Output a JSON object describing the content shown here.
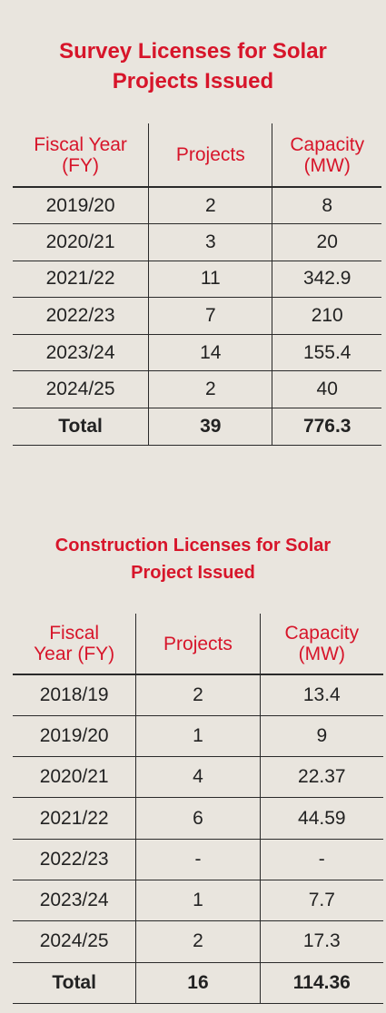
{
  "survey": {
    "title": "Survey Licenses for Solar Projects Issued",
    "headers": [
      "Fiscal Year (FY)",
      "Projects",
      "Capacity (MW)"
    ],
    "rows": [
      [
        "2019/20",
        "2",
        "8"
      ],
      [
        "2020/21",
        "3",
        "20"
      ],
      [
        "2021/22",
        "11",
        "342.9"
      ],
      [
        "2022/23",
        "7",
        "210"
      ],
      [
        "2023/24",
        "14",
        "155.4"
      ],
      [
        "2024/25",
        "2",
        "40"
      ]
    ],
    "total": [
      "Total",
      "39",
      "776.3"
    ]
  },
  "construction": {
    "title": "Construction Licenses for Solar Project Issued",
    "headers": [
      "Fiscal Year (FY)",
      "Projects",
      "Capacity (MW)"
    ],
    "rows": [
      [
        "2018/19",
        "2",
        "13.4"
      ],
      [
        "2019/20",
        "1",
        "9"
      ],
      [
        "2020/21",
        "4",
        "22.37"
      ],
      [
        "2021/22",
        "6",
        "44.59"
      ],
      [
        "2022/23",
        "-",
        "-"
      ],
      [
        "2023/24",
        "1",
        "7.7"
      ],
      [
        "2024/25",
        "2",
        "17.3"
      ]
    ],
    "total": [
      "Total",
      "16",
      "114.36"
    ]
  },
  "chart_data": [
    {
      "type": "table",
      "title": "Survey Licenses for Solar Projects Issued",
      "columns": [
        "Fiscal Year (FY)",
        "Projects",
        "Capacity (MW)"
      ],
      "x": [
        "2019/20",
        "2020/21",
        "2021/22",
        "2022/23",
        "2023/24",
        "2024/25"
      ],
      "series": [
        {
          "name": "Projects",
          "values": [
            2,
            3,
            11,
            7,
            14,
            2
          ]
        },
        {
          "name": "Capacity (MW)",
          "values": [
            8,
            20,
            342.9,
            210,
            155.4,
            40
          ]
        }
      ],
      "total": {
        "Projects": 39,
        "Capacity (MW)": 776.3
      }
    },
    {
      "type": "table",
      "title": "Construction Licenses for Solar Project Issued",
      "columns": [
        "Fiscal Year (FY)",
        "Projects",
        "Capacity (MW)"
      ],
      "x": [
        "2018/19",
        "2019/20",
        "2020/21",
        "2021/22",
        "2022/23",
        "2023/24",
        "2024/25"
      ],
      "series": [
        {
          "name": "Projects",
          "values": [
            2,
            1,
            4,
            6,
            null,
            1,
            2
          ]
        },
        {
          "name": "Capacity (MW)",
          "values": [
            13.4,
            9,
            22.37,
            44.59,
            null,
            7.7,
            17.3
          ]
        }
      ],
      "total": {
        "Projects": 16,
        "Capacity (MW)": 114.36
      }
    }
  ]
}
